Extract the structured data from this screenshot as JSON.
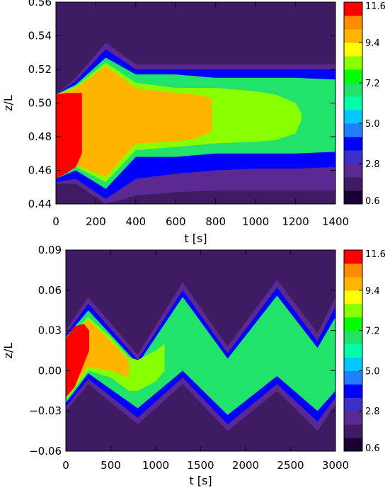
{
  "colors": {
    "background": "#3f1b63",
    "colormap": [
      "#1a0033",
      "#3f1b63",
      "#5a2a92",
      "#3a32c8",
      "#0000ff",
      "#1e7fff",
      "#00c8ff",
      "#00ffaa",
      "#22e36a",
      "#00ff00",
      "#88ff00",
      "#ffff00",
      "#ffb400",
      "#ff8c00",
      "#ff0000"
    ]
  },
  "chart_data": [
    {
      "type": "heatmap",
      "xlabel": "t [s]",
      "ylabel": "z/L",
      "xlim": [
        0,
        1400
      ],
      "ylim": [
        0.44,
        0.56
      ],
      "x_ticks": [
        "0",
        "200",
        "400",
        "600",
        "800",
        "1000",
        "1200",
        "1400"
      ],
      "y_ticks": [
        "0.44",
        "0.46",
        "0.48",
        "0.50",
        "0.52",
        "0.54",
        "0.56"
      ],
      "colorbar": {
        "range": [
          0.6,
          11.6
        ],
        "ticks": [
          "0.6",
          "2.8",
          "5.0",
          "7.2",
          "9.4",
          "11.6"
        ]
      },
      "bands": [
        {
          "level": 2.0,
          "t": [
            0,
            100,
            250,
            400,
            600,
            800,
            1000,
            1200,
            1400
          ],
          "lower": [
            0.452,
            0.452,
            0.44,
            0.445,
            0.447,
            0.448,
            0.448,
            0.448,
            0.448
          ],
          "upper": [
            0.505,
            0.515,
            0.536,
            0.523,
            0.523,
            0.523,
            0.523,
            0.523,
            0.523
          ]
        },
        {
          "level": 4.0,
          "t": [
            0,
            100,
            250,
            400,
            600,
            800,
            1000,
            1200,
            1400
          ],
          "lower": [
            0.453,
            0.455,
            0.443,
            0.455,
            0.458,
            0.46,
            0.461,
            0.461,
            0.462
          ],
          "upper": [
            0.505,
            0.513,
            0.532,
            0.52,
            0.52,
            0.52,
            0.52,
            0.52,
            0.52
          ]
        },
        {
          "level": 7.0,
          "t": [
            0,
            100,
            250,
            400,
            600,
            800,
            1000,
            1200,
            1400
          ],
          "lower": [
            0.455,
            0.46,
            0.449,
            0.468,
            0.468,
            0.47,
            0.47,
            0.47,
            0.471
          ],
          "upper": [
            0.505,
            0.511,
            0.527,
            0.517,
            0.517,
            0.515,
            0.515,
            0.515,
            0.514
          ]
        },
        {
          "level": 8.5,
          "t": [
            0,
            100,
            250,
            400,
            600,
            800,
            1000,
            1100,
            1200,
            1230
          ],
          "lower": [
            0.455,
            0.462,
            0.453,
            0.472,
            0.474,
            0.476,
            0.477,
            0.478,
            0.482,
            0.49
          ],
          "upper": [
            0.505,
            0.51,
            0.524,
            0.512,
            0.509,
            0.509,
            0.507,
            0.505,
            0.5,
            0.494
          ]
        },
        {
          "level": 10.0,
          "t": [
            0,
            100,
            250,
            400,
            600,
            700,
            780
          ],
          "lower": [
            0.455,
            0.463,
            0.456,
            0.476,
            0.477,
            0.479,
            0.483
          ],
          "upper": [
            0.505,
            0.509,
            0.522,
            0.509,
            0.506,
            0.505,
            0.503
          ]
        },
        {
          "level": 11.6,
          "t": [
            0,
            50,
            100,
            130
          ],
          "lower": [
            0.455,
            0.458,
            0.462,
            0.47
          ],
          "upper": [
            0.505,
            0.506,
            0.506,
            0.506
          ]
        }
      ]
    },
    {
      "type": "heatmap",
      "xlabel": "t [s]",
      "ylabel": "z/L",
      "xlim": [
        0,
        3000
      ],
      "ylim": [
        -0.06,
        0.09
      ],
      "x_ticks": [
        "0",
        "500",
        "1000",
        "1500",
        "2000",
        "2500",
        "3000"
      ],
      "y_ticks": [
        "−0.06",
        "−0.03",
        "0.00",
        "0.03",
        "0.06",
        "0.09"
      ],
      "colorbar": {
        "range": [
          0.6,
          11.6
        ],
        "ticks": [
          "0.6",
          "2.8",
          "5.0",
          "7.2",
          "9.4",
          "11.6"
        ]
      },
      "bands": [
        {
          "level": 2.0,
          "t": [
            0,
            250,
            800,
            1300,
            1800,
            2350,
            2800,
            3000
          ],
          "lower": [
            -0.03,
            -0.01,
            -0.04,
            -0.01,
            -0.045,
            -0.015,
            -0.045,
            -0.025
          ],
          "upper": [
            0.03,
            0.055,
            0.012,
            0.066,
            0.018,
            0.068,
            0.028,
            0.055
          ]
        },
        {
          "level": 4.0,
          "t": [
            0,
            250,
            800,
            1300,
            1800,
            2350,
            2800,
            3000
          ],
          "lower": [
            -0.027,
            -0.006,
            -0.035,
            -0.005,
            -0.04,
            -0.01,
            -0.038,
            -0.02
          ],
          "upper": [
            0.027,
            0.05,
            0.008,
            0.06,
            0.013,
            0.062,
            0.022,
            0.048
          ]
        },
        {
          "level": 7.0,
          "t": [
            0,
            250,
            800,
            1300,
            1800,
            2350,
            2800,
            3000
          ],
          "lower": [
            -0.024,
            -0.002,
            -0.028,
            0.0,
            -0.033,
            -0.004,
            -0.03,
            -0.015
          ],
          "upper": [
            0.025,
            0.045,
            0.005,
            0.055,
            0.009,
            0.056,
            0.017,
            0.04
          ]
        },
        {
          "level": 8.5,
          "t": [
            0,
            250,
            500,
            700,
            800,
            1000,
            1100
          ],
          "lower": [
            -0.022,
            0.0,
            -0.005,
            -0.015,
            -0.015,
            -0.008,
            0.0
          ],
          "upper": [
            0.024,
            0.04,
            0.025,
            0.01,
            0.008,
            0.015,
            0.02
          ]
        },
        {
          "level": 10.0,
          "t": [
            0,
            250,
            500,
            700
          ],
          "lower": [
            -0.02,
            0.003,
            0.0,
            -0.005
          ],
          "upper": [
            0.023,
            0.038,
            0.022,
            0.008
          ]
        },
        {
          "level": 11.6,
          "t": [
            0,
            100,
            200,
            260
          ],
          "lower": [
            -0.02,
            -0.012,
            0.005,
            0.015
          ],
          "upper": [
            0.024,
            0.033,
            0.035,
            0.03
          ]
        }
      ]
    }
  ]
}
